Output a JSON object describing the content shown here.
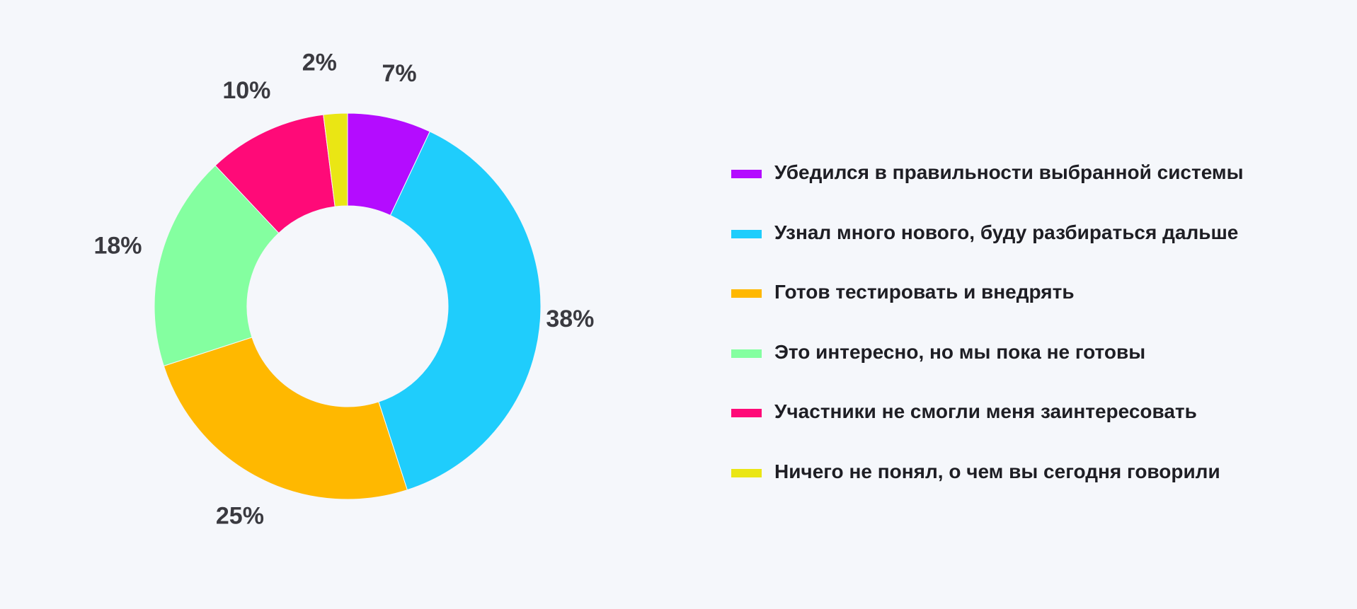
{
  "chart_data": {
    "type": "pie",
    "donut": true,
    "title": "",
    "legend_position": "right",
    "slices": [
      {
        "label": "Убедился в правильности выбранной системы",
        "value": 7,
        "value_label": "7%",
        "color": "#b40cff"
      },
      {
        "label": "Узнал много нового, буду разбираться дальше",
        "value": 38,
        "value_label": "38%",
        "color": "#1fcdfc"
      },
      {
        "label": "Готов тестировать и внедрять",
        "value": 25,
        "value_label": "25%",
        "color": "#ffb800"
      },
      {
        "label": "Это интересно, но мы пока не готовы",
        "value": 18,
        "value_label": "18%",
        "color": "#84ffa0"
      },
      {
        "label": "Участники не смогли меня заинтересовать",
        "value": 10,
        "value_label": "10%",
        "color": "#ff0a78"
      },
      {
        "label": "Ничего не понял, о чем вы сегодня говорили",
        "value": 2,
        "value_label": "2%",
        "color": "#eae614"
      }
    ]
  }
}
